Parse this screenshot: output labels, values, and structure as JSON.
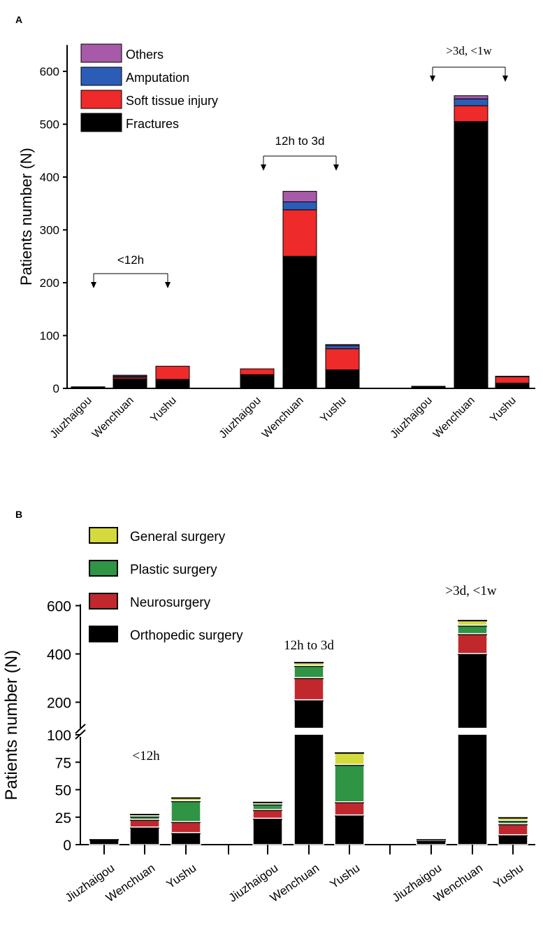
{
  "panels": {
    "a_label": "A",
    "b_label": "B"
  },
  "chart_data": [
    {
      "type": "bar",
      "stacked": true,
      "panel": "A",
      "ylabel": "Patients number (N)",
      "xlabel": "",
      "ylim": [
        0,
        650
      ],
      "yticks": [
        0,
        100,
        200,
        300,
        400,
        500,
        600
      ],
      "categories": [
        "Jiuzhaigou",
        "Wenchuan",
        "Yushu",
        "Jiuzhaigou",
        "Wenchuan",
        "Yushu",
        "Jiuzhaigou",
        "Wenchuan",
        "Yushu"
      ],
      "groups": [
        {
          "label": "<12h",
          "members": [
            0,
            2
          ]
        },
        {
          "label": "12h to 3d",
          "members": [
            3,
            5
          ]
        },
        {
          "label": ">3d, <1w",
          "members": [
            6,
            8
          ]
        }
      ],
      "series": [
        {
          "name": "Fractures",
          "color": "#000000",
          "values": [
            3,
            18,
            17,
            26,
            250,
            35,
            3,
            505,
            10
          ]
        },
        {
          "name": "Soft tissue injury",
          "color": "#ee2a2a",
          "values": [
            0,
            3,
            25,
            11,
            88,
            40,
            1,
            30,
            12
          ]
        },
        {
          "name": "Amputation",
          "color": "#2b5db8",
          "values": [
            0,
            2,
            0,
            0,
            15,
            6,
            0,
            13,
            0
          ]
        },
        {
          "name": "Others",
          "color": "#a75aa8",
          "values": [
            0,
            2,
            0,
            0,
            20,
            2,
            0,
            6,
            1
          ]
        }
      ],
      "legend_order": [
        "Others",
        "Amputation",
        "Soft tissue injury",
        "Fractures"
      ],
      "legend_position": "top-left"
    },
    {
      "type": "bar",
      "stacked": true,
      "panel": "B",
      "ylabel": "Patients number (N)",
      "xlabel": "",
      "axis_break": 100,
      "ylim_lower": [
        0,
        100
      ],
      "ylim_upper": [
        100,
        600
      ],
      "yticks_lower": [
        0,
        25,
        50,
        75,
        100
      ],
      "yticks_upper": [
        200,
        400,
        600
      ],
      "categories": [
        "Jiuzhaigou",
        "Wenchuan",
        "Yushu",
        "Jiuzhaigou",
        "Wenchuan",
        "Yushu",
        "Jiuzhaigou",
        "Wenchuan",
        "Yushu"
      ],
      "groups": [
        {
          "label": "<12h",
          "members": [
            0,
            2
          ]
        },
        {
          "label": "12h to 3d",
          "members": [
            3,
            5
          ]
        },
        {
          "label": ">3d, <1w",
          "members": [
            6,
            8
          ]
        }
      ],
      "series": [
        {
          "name": "Orthopedic surgery",
          "color": "#000000",
          "values": [
            5,
            16,
            11,
            24,
            210,
            27,
            4,
            402,
            9
          ]
        },
        {
          "name": "Neurosurgery",
          "color": "#c0282e",
          "values": [
            0,
            7,
            10,
            8,
            92,
            12,
            0,
            82,
            10
          ]
        },
        {
          "name": "Plastic surgery",
          "color": "#2f9444",
          "values": [
            0,
            3,
            19,
            5,
            50,
            34,
            1,
            35,
            3
          ]
        },
        {
          "name": "General surgery",
          "color": "#d4da3d",
          "values": [
            0,
            2,
            3,
            2,
            15,
            11,
            0,
            22,
            3
          ]
        }
      ],
      "legend_order": [
        "General surgery",
        "Plastic surgery",
        "Neurosurgery",
        "Orthopedic surgery"
      ],
      "legend_position": "top-left"
    }
  ]
}
